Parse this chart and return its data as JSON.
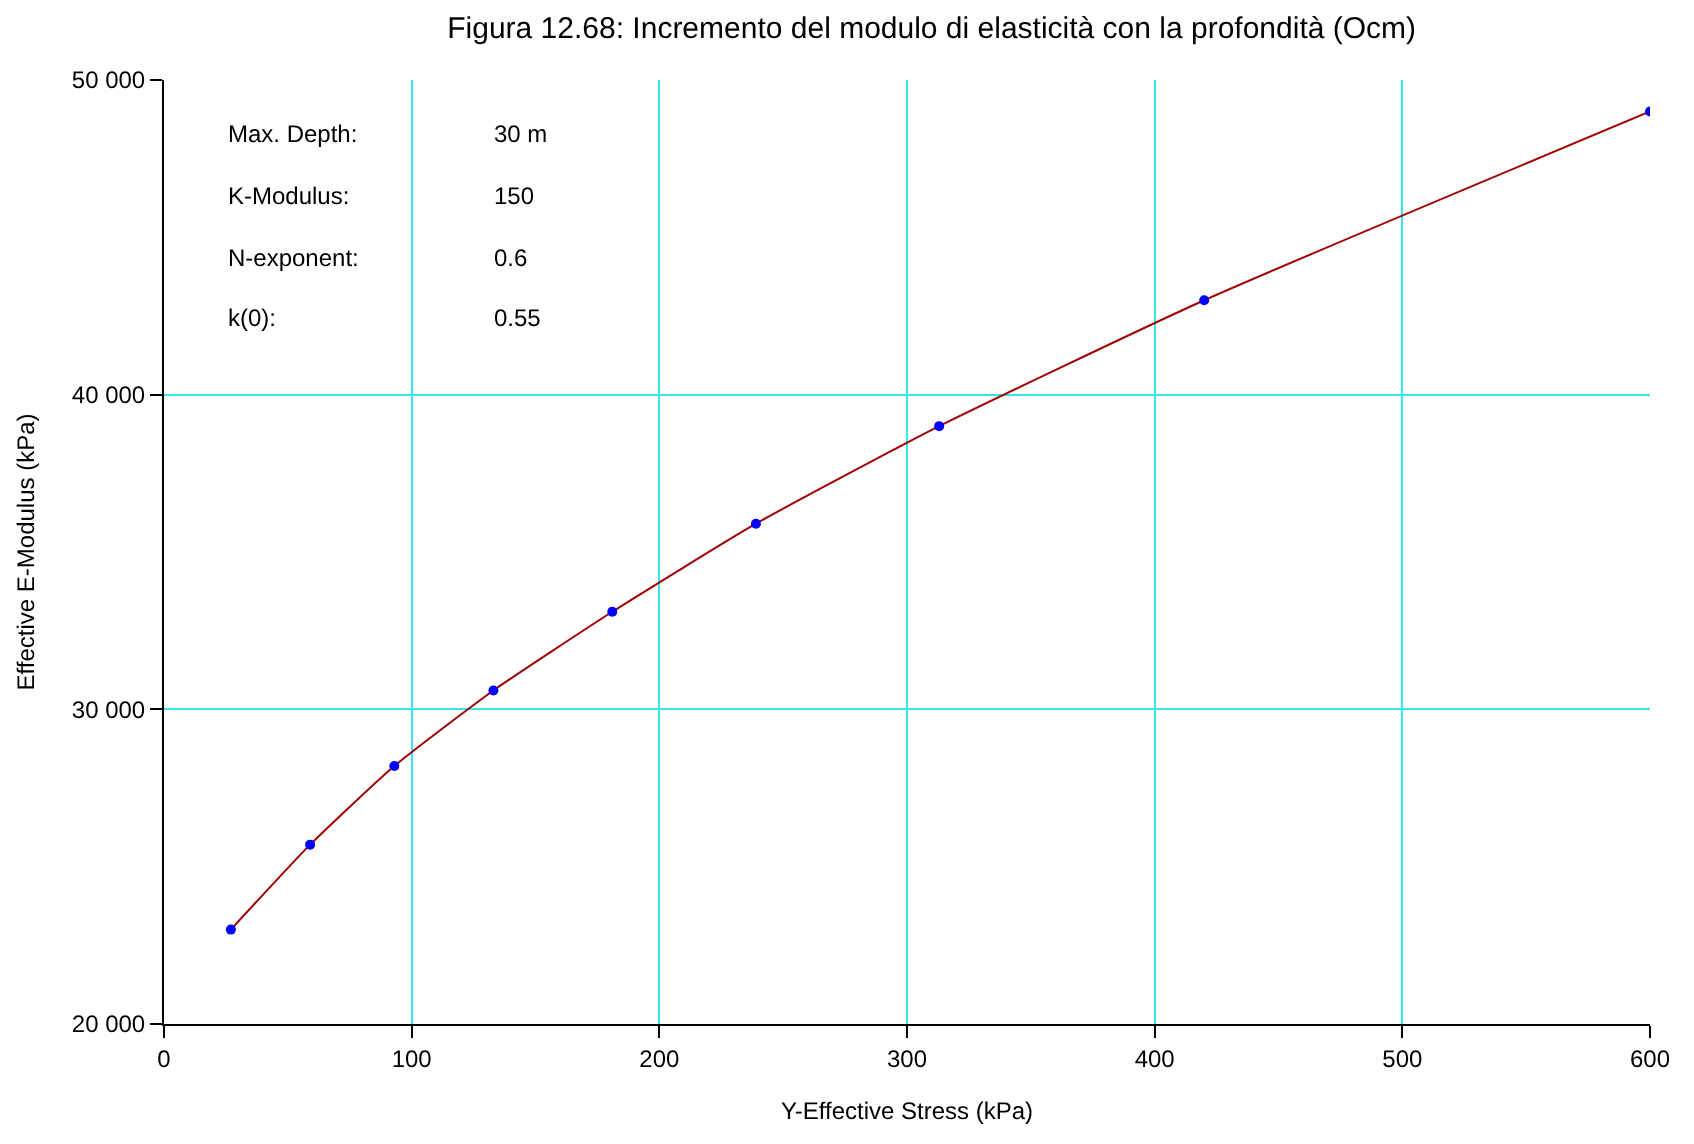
{
  "chart_data": {
    "type": "scatter",
    "title": "Figura 12.68: Incremento del modulo di elasticità con la profondità (Ocm)",
    "xlabel": "Y-Effective Stress (kPa)",
    "ylabel": "Effective E-Modulus (kPa)",
    "series": [
      {
        "type": "line",
        "color": "#a00000",
        "x": [
          27,
          59,
          93,
          133,
          181,
          239,
          313,
          420,
          600
        ],
        "values": [
          23000,
          25700,
          28200,
          30600,
          33100,
          35900,
          39000,
          43000,
          49000
        ],
        "marker": "none"
      },
      {
        "color": "#0000ff",
        "x": [
          27,
          59,
          93,
          133,
          181,
          239,
          313,
          420,
          600
        ],
        "values": [
          23000,
          25700,
          28200,
          30600,
          33100,
          35900,
          39000,
          43000,
          49000
        ],
        "marker": "circle"
      }
    ],
    "xlim": [
      0,
      600
    ],
    "xticks": [
      0,
      100,
      200,
      300,
      400,
      500,
      600
    ],
    "ylim": [
      20000,
      50000
    ],
    "yticks": [
      {
        "value": 20000,
        "label": "20 000"
      },
      {
        "value": 30000,
        "label": "30 000"
      },
      {
        "value": 40000,
        "label": "40 000"
      },
      {
        "value": 50000,
        "label": "50 000"
      }
    ],
    "grid": true,
    "annotations": [
      "Max. Depth:",
      "30 m",
      "K-Modulus:",
      "150",
      "N-exponent:",
      "0.6",
      "k(0):",
      "0.55"
    ]
  }
}
